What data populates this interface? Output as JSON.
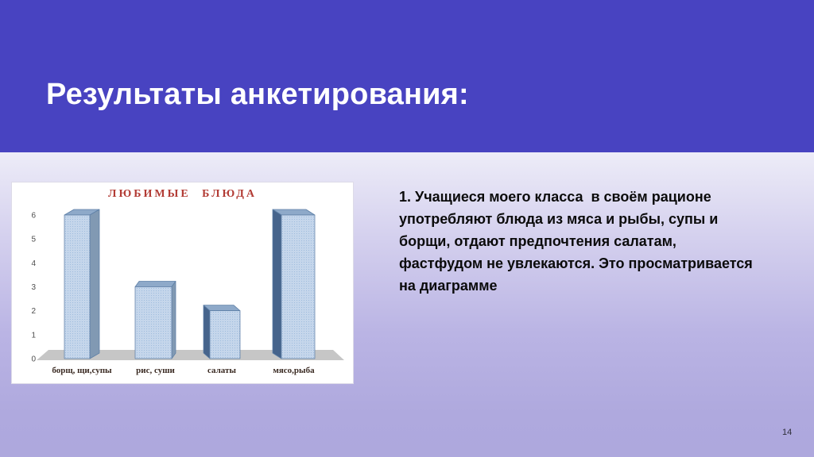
{
  "slide": {
    "title": "Результаты анкетирования:",
    "page_number": "14",
    "body_text": {
      "lines": [
        "1. Учащиеся моего класса  в своём рационе",
        "употребляют блюда из мяса и рыбы, супы и",
        "борщи, отдают предпочтения салатам,",
        "фастфудом не увлекаются. Это просматривается",
        "на диаграмме"
      ]
    }
  },
  "colors": {
    "band": "#4843c1",
    "background_top": "#edecf8",
    "background_bottom": "#aea8dd",
    "title_text": "#ffffff",
    "body_text": "#0b0b0b",
    "chart_title": "#b23b34",
    "bar_front": "#c5d6eb",
    "bar_front_dot": "#9fbcdd",
    "bar_top": "#8ea9c9",
    "bar_side_light": "#8199b3",
    "bar_side_dark": "#46648c",
    "bar_stroke": "#5d7fa6",
    "floor_shadow": "#c6c6c6",
    "axis_text": "#4d4d4d",
    "category_text": "#3a2a22"
  },
  "chart_data": {
    "type": "bar",
    "style": "3d-column",
    "title": "ЛЮБИМЫЕ БЛЮДА",
    "categories": [
      "борщ, щи,супы",
      "рис, суши",
      "салаты",
      "мясо,рыба"
    ],
    "values": [
      6,
      3,
      2,
      6
    ],
    "xlabel": "",
    "ylabel": "",
    "ylim": [
      0,
      6
    ],
    "yticks": [
      0,
      1,
      2,
      3,
      4,
      5,
      6
    ],
    "grid": false,
    "legend": "none"
  }
}
